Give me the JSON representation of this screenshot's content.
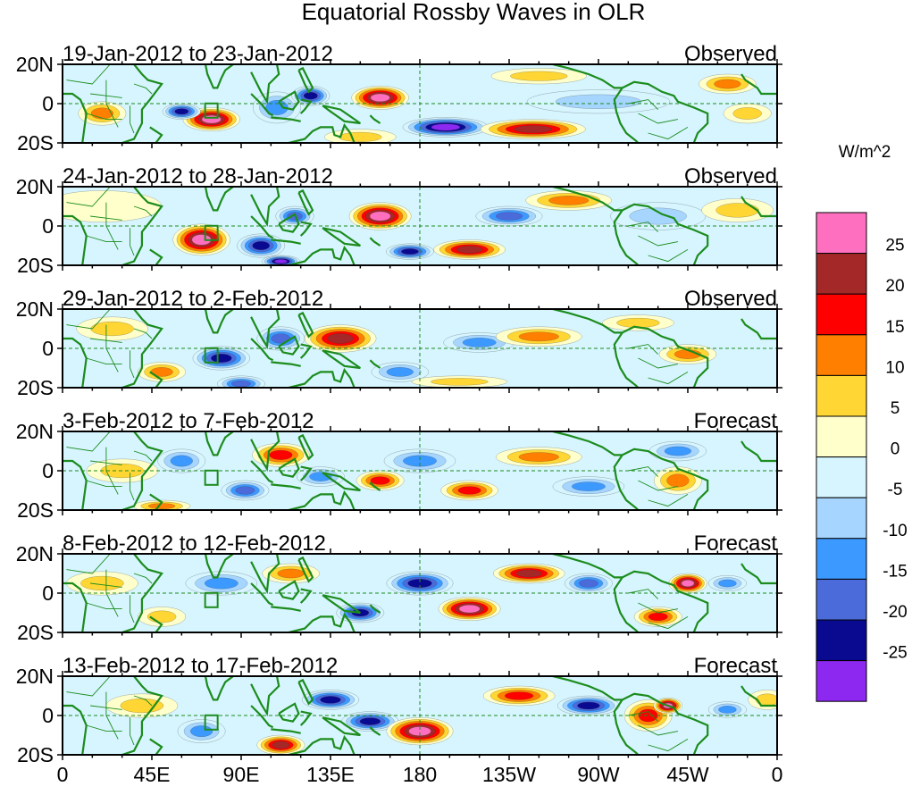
{
  "chart_data": {
    "type": "heatmap",
    "title": "Equatorial Rossby Waves in OLR",
    "colorbar": {
      "unit_label": "W/m^2",
      "levels": [
        -25,
        -20,
        -15,
        -10,
        -5,
        0,
        5,
        10,
        15,
        20,
        25
      ],
      "level_labels": [
        "25",
        "20",
        "15",
        "10",
        "5",
        "0",
        "-5",
        "-10",
        "-15",
        "-20",
        "-25"
      ],
      "colors_top_to_bottom": [
        "#ff6fc0",
        "#a52828",
        "#ff0000",
        "#ff7f00",
        "#ffd633",
        "#ffffcc",
        "#d6f5ff",
        "#a6d6ff",
        "#3c99ff",
        "#4b6bdb",
        "#0a0a90",
        "#8c28f0"
      ]
    },
    "axes": {
      "lon_ticks": [
        "0",
        "45E",
        "90E",
        "135E",
        "180",
        "135W",
        "90W",
        "45W",
        "0"
      ],
      "lat_ticks": [
        "20N",
        "0",
        "20S"
      ],
      "lon_range": [
        0,
        360
      ],
      "lat_range": [
        -20,
        20
      ]
    },
    "panels": [
      {
        "date_range": "19-Jan-2012 to 23-Jan-2012",
        "status": "Observed",
        "features": [
          {
            "lon": 75,
            "lat": -8,
            "w": 12,
            "h": 6,
            "v": 29
          },
          {
            "lon": 60,
            "lat": -4,
            "w": 8,
            "h": 4,
            "v": -22
          },
          {
            "lon": 20,
            "lat": -5,
            "w": 10,
            "h": 6,
            "v": 12
          },
          {
            "lon": 108,
            "lat": -2,
            "w": 10,
            "h": 8,
            "v": -15
          },
          {
            "lon": 125,
            "lat": 4,
            "w": 8,
            "h": 5,
            "v": -22
          },
          {
            "lon": 160,
            "lat": 3,
            "w": 12,
            "h": 6,
            "v": 27
          },
          {
            "lon": 193,
            "lat": -12,
            "w": 18,
            "h": 5,
            "v": -27
          },
          {
            "lon": 237,
            "lat": -13,
            "w": 22,
            "h": 5,
            "v": 22
          },
          {
            "lon": 270,
            "lat": 1,
            "w": 30,
            "h": 6,
            "v": -10
          },
          {
            "lon": 240,
            "lat": 14,
            "w": 20,
            "h": 4,
            "v": 7
          },
          {
            "lon": 335,
            "lat": 10,
            "w": 12,
            "h": 5,
            "v": 14
          },
          {
            "lon": 345,
            "lat": -5,
            "w": 10,
            "h": 5,
            "v": 10
          },
          {
            "lon": 150,
            "lat": -17,
            "w": 15,
            "h": 4,
            "v": 10
          }
        ]
      },
      {
        "date_range": "24-Jan-2012 to 28-Jan-2012",
        "status": "Observed",
        "features": [
          {
            "lon": 70,
            "lat": -7,
            "w": 12,
            "h": 8,
            "v": 28
          },
          {
            "lon": 100,
            "lat": -10,
            "w": 10,
            "h": 6,
            "v": -22
          },
          {
            "lon": 110,
            "lat": -18,
            "w": 8,
            "h": 3,
            "v": -27
          },
          {
            "lon": 117,
            "lat": 5,
            "w": 8,
            "h": 5,
            "v": -20
          },
          {
            "lon": 160,
            "lat": 5,
            "w": 13,
            "h": 7,
            "v": 26
          },
          {
            "lon": 175,
            "lat": -13,
            "w": 10,
            "h": 4,
            "v": -22
          },
          {
            "lon": 205,
            "lat": -12,
            "w": 15,
            "h": 5,
            "v": 24
          },
          {
            "lon": 225,
            "lat": 5,
            "w": 14,
            "h": 5,
            "v": -18
          },
          {
            "lon": 255,
            "lat": 13,
            "w": 18,
            "h": 5,
            "v": 11
          },
          {
            "lon": 300,
            "lat": 5,
            "w": 20,
            "h": 7,
            "v": -9
          },
          {
            "lon": 340,
            "lat": 8,
            "w": 15,
            "h": 6,
            "v": 6
          },
          {
            "lon": 20,
            "lat": 10,
            "w": 25,
            "h": 8,
            "v": 3
          }
        ]
      },
      {
        "date_range": "29-Jan-2012 to 2-Feb-2012",
        "status": "Observed",
        "features": [
          {
            "lon": 80,
            "lat": -5,
            "w": 12,
            "h": 6,
            "v": -24
          },
          {
            "lon": 110,
            "lat": 5,
            "w": 10,
            "h": 6,
            "v": -20
          },
          {
            "lon": 90,
            "lat": -18,
            "w": 10,
            "h": 4,
            "v": -18
          },
          {
            "lon": 140,
            "lat": 5,
            "w": 15,
            "h": 7,
            "v": 24
          },
          {
            "lon": 50,
            "lat": -12,
            "w": 10,
            "h": 5,
            "v": 14
          },
          {
            "lon": 170,
            "lat": -12,
            "w": 12,
            "h": 5,
            "v": -12
          },
          {
            "lon": 210,
            "lat": 3,
            "w": 15,
            "h": 5,
            "v": -13
          },
          {
            "lon": 240,
            "lat": 6,
            "w": 18,
            "h": 5,
            "v": 11
          },
          {
            "lon": 290,
            "lat": 13,
            "w": 15,
            "h": 4,
            "v": 10
          },
          {
            "lon": 315,
            "lat": -3,
            "w": 12,
            "h": 5,
            "v": 12
          },
          {
            "lon": 25,
            "lat": 10,
            "w": 15,
            "h": 6,
            "v": 9
          },
          {
            "lon": 200,
            "lat": -17,
            "w": 20,
            "h": 3,
            "v": 10
          }
        ]
      },
      {
        "date_range": "3-Feb-2012 to 7-Feb-2012",
        "status": "Forecast",
        "features": [
          {
            "lon": 60,
            "lat": 5,
            "w": 10,
            "h": 6,
            "v": -15
          },
          {
            "lon": 92,
            "lat": -10,
            "w": 10,
            "h": 5,
            "v": -20
          },
          {
            "lon": 110,
            "lat": 8,
            "w": 12,
            "h": 6,
            "v": 16
          },
          {
            "lon": 130,
            "lat": -3,
            "w": 10,
            "h": 5,
            "v": -14
          },
          {
            "lon": 160,
            "lat": -5,
            "w": 10,
            "h": 5,
            "v": 16
          },
          {
            "lon": 180,
            "lat": 5,
            "w": 15,
            "h": 6,
            "v": -14
          },
          {
            "lon": 205,
            "lat": -10,
            "w": 12,
            "h": 5,
            "v": 16
          },
          {
            "lon": 240,
            "lat": 7,
            "w": 18,
            "h": 5,
            "v": 12
          },
          {
            "lon": 265,
            "lat": -8,
            "w": 15,
            "h": 5,
            "v": -12
          },
          {
            "lon": 310,
            "lat": -5,
            "w": 10,
            "h": 7,
            "v": 14
          },
          {
            "lon": 310,
            "lat": 10,
            "w": 12,
            "h": 5,
            "v": -13
          },
          {
            "lon": 30,
            "lat": 0,
            "w": 15,
            "h": 6,
            "v": 8
          },
          {
            "lon": 50,
            "lat": -18,
            "w": 12,
            "h": 3,
            "v": 11
          }
        ]
      },
      {
        "date_range": "8-Feb-2012 to 12-Feb-2012",
        "status": "Forecast",
        "features": [
          {
            "lon": 80,
            "lat": 5,
            "w": 15,
            "h": 6,
            "v": -14
          },
          {
            "lon": 115,
            "lat": 10,
            "w": 12,
            "h": 5,
            "v": 12
          },
          {
            "lon": 150,
            "lat": -10,
            "w": 10,
            "h": 5,
            "v": -24
          },
          {
            "lon": 180,
            "lat": 5,
            "w": 14,
            "h": 6,
            "v": -24
          },
          {
            "lon": 205,
            "lat": -8,
            "w": 13,
            "h": 6,
            "v": 28
          },
          {
            "lon": 235,
            "lat": 10,
            "w": 15,
            "h": 5,
            "v": 21
          },
          {
            "lon": 265,
            "lat": 5,
            "w": 10,
            "h": 5,
            "v": -17
          },
          {
            "lon": 300,
            "lat": -12,
            "w": 10,
            "h": 5,
            "v": 20
          },
          {
            "lon": 315,
            "lat": 5,
            "w": 8,
            "h": 5,
            "v": 26
          },
          {
            "lon": 335,
            "lat": 5,
            "w": 8,
            "h": 4,
            "v": -15
          },
          {
            "lon": 20,
            "lat": 5,
            "w": 15,
            "h": 6,
            "v": 8
          },
          {
            "lon": 50,
            "lat": -12,
            "w": 10,
            "h": 5,
            "v": 10
          }
        ]
      },
      {
        "date_range": "13-Feb-2012 to 17-Feb-2012",
        "status": "Forecast",
        "features": [
          {
            "lon": 110,
            "lat": -15,
            "w": 10,
            "h": 5,
            "v": 23
          },
          {
            "lon": 135,
            "lat": 8,
            "w": 12,
            "h": 5,
            "v": -22
          },
          {
            "lon": 155,
            "lat": -3,
            "w": 12,
            "h": 5,
            "v": -22
          },
          {
            "lon": 180,
            "lat": -8,
            "w": 14,
            "h": 7,
            "v": 27
          },
          {
            "lon": 230,
            "lat": 10,
            "w": 15,
            "h": 5,
            "v": 16
          },
          {
            "lon": 265,
            "lat": 5,
            "w": 13,
            "h": 5,
            "v": -22
          },
          {
            "lon": 295,
            "lat": 0,
            "w": 10,
            "h": 8,
            "v": 18
          },
          {
            "lon": 305,
            "lat": 5,
            "w": 6,
            "h": 4,
            "v": 26
          },
          {
            "lon": 335,
            "lat": 3,
            "w": 8,
            "h": 4,
            "v": -14
          },
          {
            "lon": 70,
            "lat": -8,
            "w": 10,
            "h": 6,
            "v": -15
          },
          {
            "lon": 40,
            "lat": 5,
            "w": 15,
            "h": 6,
            "v": 8
          },
          {
            "lon": 355,
            "lat": 8,
            "w": 8,
            "h": 5,
            "v": 10
          }
        ]
      }
    ]
  }
}
